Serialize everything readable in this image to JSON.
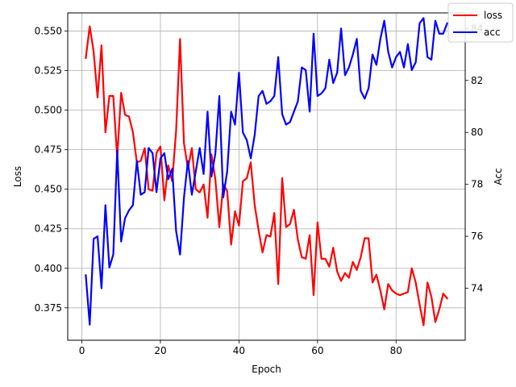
{
  "chart_data": {
    "type": "line",
    "title": "",
    "xlabel": "Epoch",
    "ylabel_left": "Loss",
    "ylabel_right": "Acc",
    "xlim": [
      -3.6,
      97.6
    ],
    "ylim_left": [
      0.3545,
      0.5615
    ],
    "ylim_right": [
      72.0,
      84.6
    ],
    "xticks": [
      0,
      20,
      40,
      60,
      80
    ],
    "xtick_labels": [
      "0",
      "20",
      "40",
      "60",
      "80"
    ],
    "yticks_left": [
      0.375,
      0.4,
      0.425,
      0.45,
      0.475,
      0.5,
      0.525,
      0.55
    ],
    "ytick_labels_left": [
      "0.375",
      "0.400",
      "0.425",
      "0.450",
      "0.475",
      "0.500",
      "0.525",
      "0.550"
    ],
    "yticks_right": [
      74,
      76,
      78,
      80,
      82,
      84
    ],
    "ytick_labels_right": [
      "74",
      "76",
      "78",
      "80",
      "82",
      "84"
    ],
    "grid": true,
    "legend_position": "top-right",
    "series": [
      {
        "name": "loss",
        "axis": "left",
        "color": "#ff0000",
        "x": [
          1,
          2,
          3,
          4,
          5,
          6,
          7,
          8,
          9,
          10,
          11,
          12,
          13,
          14,
          15,
          16,
          17,
          18,
          19,
          20,
          21,
          22,
          23,
          24,
          25,
          26,
          27,
          28,
          29,
          30,
          31,
          32,
          33,
          34,
          35,
          36,
          37,
          38,
          39,
          40,
          41,
          42,
          43,
          44,
          45,
          46,
          47,
          48,
          49,
          50,
          51,
          52,
          53,
          54,
          55,
          56,
          57,
          58,
          59,
          60,
          61,
          62,
          63,
          64,
          65,
          66,
          67,
          68,
          69,
          70,
          71,
          72,
          73,
          74,
          75,
          76,
          77,
          78,
          79,
          80,
          81,
          82,
          83,
          84,
          85,
          86,
          87,
          88,
          89,
          90,
          91,
          92,
          93
        ],
        "y": [
          0.533,
          0.553,
          0.537,
          0.508,
          0.541,
          0.486,
          0.509,
          0.509,
          0.47,
          0.511,
          0.497,
          0.496,
          0.486,
          0.467,
          0.468,
          0.476,
          0.45,
          0.449,
          0.473,
          0.477,
          0.443,
          0.465,
          0.455,
          0.487,
          0.545,
          0.479,
          0.463,
          0.476,
          0.45,
          0.448,
          0.453,
          0.432,
          0.472,
          0.456,
          0.426,
          0.453,
          0.449,
          0.415,
          0.436,
          0.427,
          0.455,
          0.457,
          0.467,
          0.44,
          0.424,
          0.41,
          0.421,
          0.42,
          0.435,
          0.39,
          0.457,
          0.426,
          0.428,
          0.437,
          0.418,
          0.407,
          0.406,
          0.421,
          0.383,
          0.429,
          0.406,
          0.406,
          0.401,
          0.413,
          0.398,
          0.392,
          0.397,
          0.394,
          0.404,
          0.399,
          0.407,
          0.419,
          0.419,
          0.391,
          0.396,
          0.386,
          0.374,
          0.39,
          0.386,
          0.384,
          0.383,
          0.384,
          0.385,
          0.4,
          0.391,
          0.377,
          0.364,
          0.391,
          0.382,
          0.366,
          0.374,
          0.384,
          0.381
        ]
      },
      {
        "name": "acc",
        "axis": "right",
        "color": "#0000ff",
        "x": [
          1,
          2,
          3,
          4,
          5,
          6,
          7,
          8,
          9,
          10,
          11,
          12,
          13,
          14,
          15,
          16,
          17,
          18,
          19,
          20,
          21,
          22,
          23,
          24,
          25,
          26,
          27,
          28,
          29,
          30,
          31,
          32,
          33,
          34,
          35,
          36,
          37,
          38,
          39,
          40,
          41,
          42,
          43,
          44,
          45,
          46,
          47,
          48,
          49,
          50,
          51,
          52,
          53,
          54,
          55,
          56,
          57,
          58,
          59,
          60,
          61,
          62,
          63,
          64,
          65,
          66,
          67,
          68,
          69,
          70,
          71,
          72,
          73,
          74,
          75,
          76,
          77,
          78,
          79,
          80,
          81,
          82,
          83,
          84,
          85,
          86,
          87,
          88,
          89,
          90,
          91,
          92,
          93
        ],
        "y": [
          74.5,
          72.6,
          75.9,
          76.0,
          74.0,
          77.2,
          74.8,
          75.3,
          79.3,
          75.8,
          76.7,
          77.0,
          77.2,
          78.9,
          77.6,
          77.7,
          79.4,
          79.2,
          77.7,
          79.0,
          79.2,
          78.2,
          78.6,
          76.2,
          75.3,
          77.5,
          78.9,
          77.6,
          78.5,
          79.4,
          78.4,
          80.8,
          78.3,
          79.2,
          81.4,
          77.5,
          78.5,
          80.8,
          80.3,
          82.3,
          80.0,
          79.7,
          79.0,
          79.9,
          81.4,
          81.6,
          81.1,
          81.2,
          81.4,
          82.9,
          80.7,
          80.3,
          80.4,
          80.8,
          81.2,
          82.5,
          82.4,
          80.8,
          83.8,
          81.4,
          81.5,
          81.7,
          82.8,
          81.9,
          82.3,
          84.0,
          82.2,
          82.5,
          83.0,
          83.6,
          81.6,
          81.3,
          81.7,
          83.0,
          82.6,
          83.6,
          84.3,
          83.1,
          82.5,
          82.9,
          83.1,
          82.5,
          83.4,
          82.4,
          82.7,
          84.2,
          84.4,
          82.9,
          82.8,
          84.3,
          83.8,
          83.8,
          84.2
        ]
      }
    ]
  }
}
